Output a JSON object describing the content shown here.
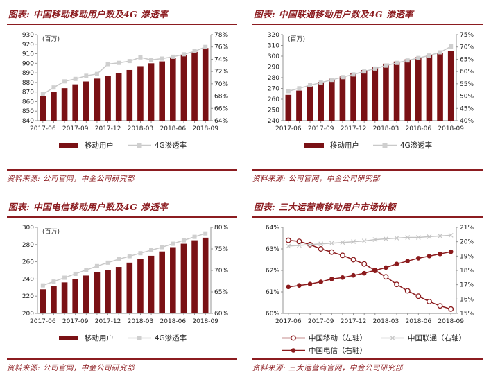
{
  "colors": {
    "accent": "#8c1c20",
    "bar_red": "#7a1115",
    "share_red": "#8b1a1c",
    "line_gray": "#c9c9c9",
    "marker_gray": "#cfcfcf",
    "axis_text": "#222222"
  },
  "panels": [
    {
      "title_prefix": "图表:",
      "title": "中国移动移动用户数及4G 渗透率",
      "source_prefix": "资料来源:",
      "source": "公司官网，中金公司研究部"
    },
    {
      "title_prefix": "图表:",
      "title": "中国联通移动用户数及4G 渗透率",
      "source_prefix": "资料来源:",
      "source": "公司官网，中金公司研究部"
    },
    {
      "title_prefix": "图表:",
      "title": "中国电信移动用户数及4G 渗透率",
      "source_prefix": "资料来源:",
      "source": "公司官网，中金公司研究部"
    },
    {
      "title_prefix": "图表:",
      "title": "三大运营商移动用户市场份额",
      "source_prefix": "资料来源:",
      "source": "三大运营商官网，中金公司研究部"
    }
  ],
  "chart_data": [
    {
      "type": "bar",
      "title": "中国移动移动用户数及4G渗透率",
      "x": [
        "2017-06",
        "2017-07",
        "2017-08",
        "2017-09",
        "2017-10",
        "2017-11",
        "2017-12",
        "2018-01",
        "2018-02",
        "2018-03",
        "2018-04",
        "2018-05",
        "2018-06",
        "2018-07",
        "2018-08",
        "2018-09"
      ],
      "x_tick_every": 3,
      "left_axis": {
        "label": "(百万)",
        "min": 840,
        "max": 930,
        "step": 10
      },
      "right_axis": {
        "min": 64,
        "max": 78,
        "step": 2,
        "format": "percent"
      },
      "series": [
        {
          "name": "移动用户",
          "type": "bar",
          "axis": "left",
          "color": "#7a1115",
          "values": [
            866,
            870,
            874,
            878,
            881,
            884,
            887,
            890,
            893,
            897,
            900,
            902,
            906,
            909,
            912,
            916
          ]
        },
        {
          "name": "4G渗透率",
          "type": "line",
          "axis": "right",
          "marker": "square",
          "color": "#c9c9c9",
          "marker_color": "#cfcfcf",
          "values": [
            68.3,
            69.4,
            70.4,
            70.8,
            71.3,
            71.6,
            73.2,
            73.4,
            73.7,
            74.3,
            73.9,
            74.1,
            74.4,
            74.8,
            75.3,
            76.0
          ]
        }
      ]
    },
    {
      "type": "bar",
      "title": "中国联通移动用户数及4G渗透率",
      "x": [
        "2017-06",
        "2017-07",
        "2017-08",
        "2017-09",
        "2017-10",
        "2017-11",
        "2017-12",
        "2018-01",
        "2018-02",
        "2018-03",
        "2018-04",
        "2018-05",
        "2018-06",
        "2018-07",
        "2018-08",
        "2018-09"
      ],
      "x_tick_every": 3,
      "left_axis": {
        "label": "(百万)",
        "min": 240,
        "max": 320,
        "step": 10
      },
      "right_axis": {
        "min": 40,
        "max": 75,
        "step": 5,
        "format": "percent"
      },
      "series": [
        {
          "name": "移动用户",
          "type": "bar",
          "axis": "left",
          "color": "#7a1115",
          "values": [
            264,
            268,
            272,
            276,
            279,
            281,
            284,
            287,
            290,
            293,
            295,
            297,
            299,
            301,
            303,
            305
          ]
        },
        {
          "name": "4G渗透率",
          "type": "line",
          "axis": "right",
          "marker": "square",
          "color": "#c9c9c9",
          "marker_color": "#cfcfcf",
          "values": [
            52.0,
            53.2,
            54.4,
            55.5,
            56.6,
            57.7,
            58.8,
            60.0,
            61.2,
            62.4,
            63.5,
            64.5,
            65.5,
            66.5,
            67.8,
            70.2
          ]
        }
      ]
    },
    {
      "type": "bar",
      "title": "中国电信移动用户数及4G渗透率",
      "x": [
        "2017-06",
        "2017-07",
        "2017-08",
        "2017-09",
        "2017-10",
        "2017-11",
        "2017-12",
        "2018-01",
        "2018-02",
        "2018-03",
        "2018-04",
        "2018-05",
        "2018-06",
        "2018-07",
        "2018-08",
        "2018-09"
      ],
      "x_tick_every": 3,
      "left_axis": {
        "label": "(百万)",
        "min": 200,
        "max": 300,
        "step": 20
      },
      "right_axis": {
        "min": 60,
        "max": 80,
        "step": 5,
        "format": "percent"
      },
      "series": [
        {
          "name": "移动用户",
          "type": "bar",
          "axis": "left",
          "color": "#7a1115",
          "values": [
            228,
            232,
            236,
            240,
            244,
            248,
            250,
            254,
            259,
            263,
            267,
            272,
            277,
            281,
            285,
            288
          ]
        },
        {
          "name": "4G渗透率",
          "type": "line",
          "axis": "right",
          "marker": "square",
          "color": "#c9c9c9",
          "marker_color": "#cfcfcf",
          "values": [
            66.5,
            67.4,
            68.3,
            69.2,
            70.1,
            71.0,
            71.8,
            72.6,
            73.3,
            74.0,
            74.7,
            75.4,
            76.2,
            77.0,
            77.8,
            78.6
          ]
        }
      ]
    },
    {
      "type": "line",
      "title": "三大运营商移动用户市场份额",
      "x": [
        "2017-06",
        "2017-07",
        "2017-08",
        "2017-09",
        "2017-10",
        "2017-11",
        "2017-12",
        "2018-01",
        "2018-02",
        "2018-03",
        "2018-04",
        "2018-05",
        "2018-06",
        "2018-07",
        "2018-08",
        "2018-09"
      ],
      "x_tick_every": 3,
      "left_axis": {
        "min": 60,
        "max": 64,
        "step": 1,
        "format": "percent"
      },
      "right_axis": {
        "min": 15,
        "max": 21,
        "step": 1,
        "format": "percent"
      },
      "series": [
        {
          "name": "中国移动（左轴）",
          "type": "line",
          "axis": "left",
          "marker": "circle-open",
          "color": "#8b1a1c",
          "values": [
            63.4,
            63.35,
            63.2,
            63.0,
            62.85,
            62.7,
            62.5,
            62.3,
            62.0,
            61.7,
            61.35,
            61.05,
            60.8,
            60.55,
            60.35,
            60.2
          ]
        },
        {
          "name": "中国联通（右轴）",
          "type": "line",
          "axis": "right",
          "marker": "x",
          "color": "#c4c4c4",
          "values": [
            19.7,
            19.75,
            19.8,
            19.85,
            19.9,
            19.95,
            20.0,
            20.05,
            20.15,
            20.2,
            20.25,
            20.3,
            20.3,
            20.35,
            20.4,
            20.45
          ]
        },
        {
          "name": "中国电信（右轴）",
          "type": "line",
          "axis": "right",
          "marker": "circle-filled",
          "color": "#8b1a1c",
          "values": [
            16.85,
            16.95,
            17.05,
            17.2,
            17.4,
            17.5,
            17.65,
            17.8,
            18.0,
            18.2,
            18.45,
            18.65,
            18.85,
            19.0,
            19.15,
            19.3
          ]
        }
      ]
    }
  ]
}
